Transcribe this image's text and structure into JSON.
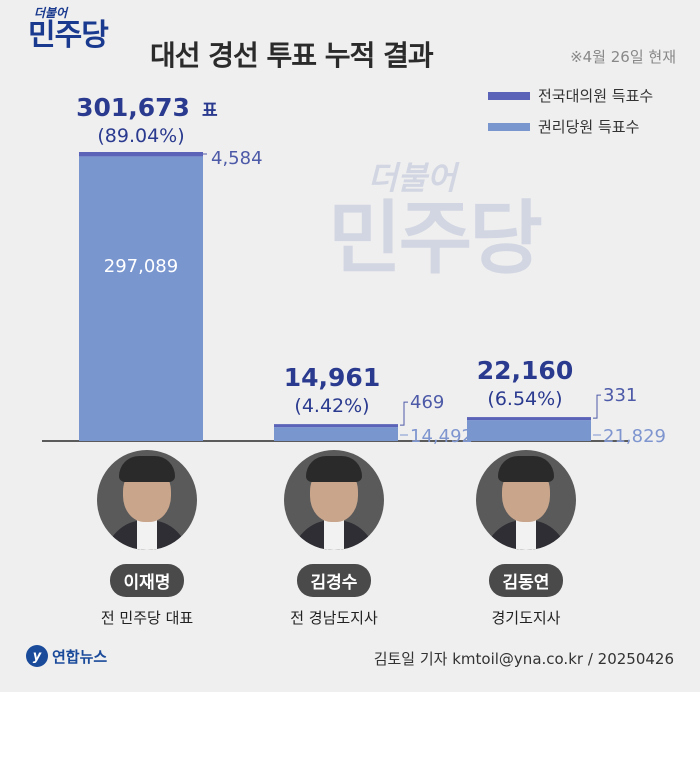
{
  "header": {
    "logo_script": "더불어",
    "logo_main": "민주당",
    "title": "대선 경선 투표 누적 결과",
    "date_note": "※4월 26일 현재"
  },
  "legend": [
    {
      "label": "전국대의원 득표수",
      "color": "#5a63b8"
    },
    {
      "label": "권리당원 득표수",
      "color": "#7a96cf"
    }
  ],
  "watermark": {
    "script": "더불어",
    "main": "민주당"
  },
  "chart_data": {
    "type": "bar",
    "stacked": true,
    "categories": [
      "이재명",
      "김경수",
      "김동연"
    ],
    "series": [
      {
        "name": "권리당원 득표수",
        "values": [
          297089,
          14492,
          21829
        ],
        "color": "#7a96cf"
      },
      {
        "name": "전국대의원 득표수",
        "values": [
          4584,
          469,
          331
        ],
        "color": "#5a63b8"
      }
    ],
    "totals": [
      301673,
      14961,
      22160
    ],
    "total_labels": [
      "301,673",
      "14,961",
      "22,160"
    ],
    "total_unit": "표",
    "percent_labels": [
      "(89.04%)",
      "(4.42%)",
      "(6.54%)"
    ],
    "delegate_labels": [
      "4,584",
      "469",
      "331"
    ],
    "member_labels": [
      "297,089",
      "14,492",
      "21,829"
    ],
    "ylim": [
      0,
      301673
    ]
  },
  "candidates": [
    {
      "name": "이재명",
      "role": "전 민주당 대표"
    },
    {
      "name": "김경수",
      "role": "전 경남도지사"
    },
    {
      "name": "김동연",
      "role": "경기도지사"
    }
  ],
  "footer": {
    "logo_text": "연합뉴스",
    "credit": "김토일 기자 kmtoil@yna.co.kr / 20250426"
  }
}
